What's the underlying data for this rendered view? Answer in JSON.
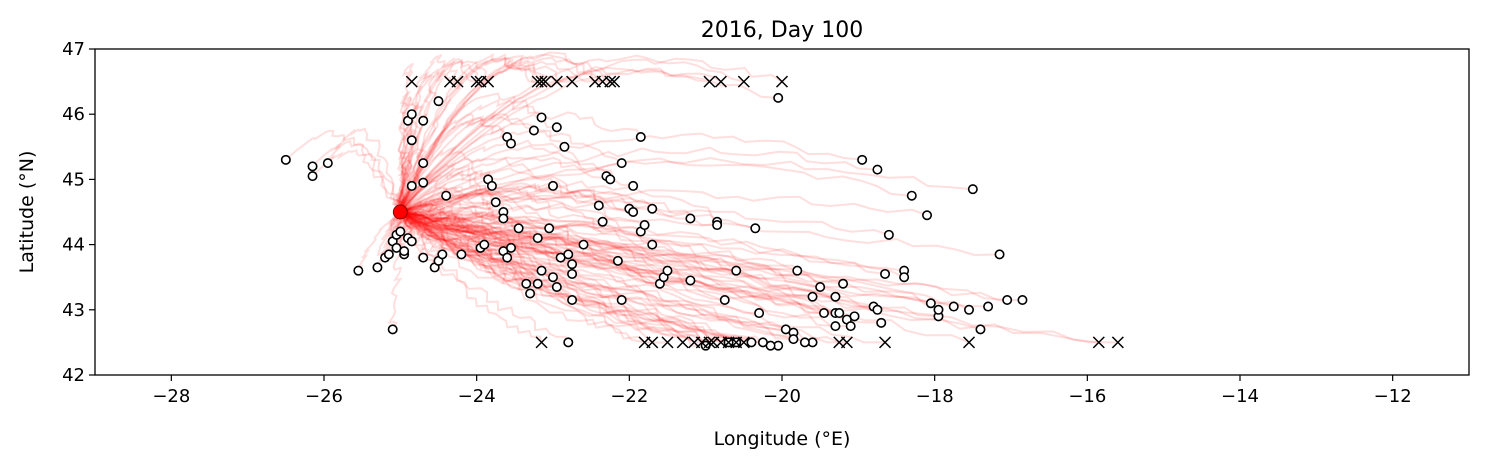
{
  "chart_data": {
    "type": "scatter",
    "title": "2016, Day 100",
    "xlabel": "Longitude (°E)",
    "ylabel": "Latitude (°N)",
    "xlim": [
      -29,
      -11
    ],
    "ylim": [
      42,
      47
    ],
    "xticks": [
      -28,
      -26,
      -24,
      -22,
      -20,
      -18,
      -16,
      -14,
      -12
    ],
    "yticks": [
      42,
      43,
      44,
      45,
      46,
      47
    ],
    "xtick_labels": [
      "−28",
      "−26",
      "−24",
      "−22",
      "−20",
      "−18",
      "−16",
      "−14",
      "−12"
    ],
    "ytick_labels": [
      "42",
      "43",
      "44",
      "45",
      "46",
      "47"
    ],
    "grid": false,
    "release_point": {
      "x": -25.0,
      "y": 44.5,
      "color": "#ff0000"
    },
    "track_color": "#ff0000",
    "series": [
      {
        "marker": "open-circle",
        "points": [
          [
            -26.5,
            45.3
          ],
          [
            -26.15,
            45.2
          ],
          [
            -26.15,
            45.05
          ],
          [
            -25.95,
            45.25
          ],
          [
            -25.55,
            43.6
          ],
          [
            -25.3,
            43.65
          ],
          [
            -25.2,
            43.8
          ],
          [
            -25.15,
            43.85
          ],
          [
            -25.1,
            44.05
          ],
          [
            -25.05,
            43.95
          ],
          [
            -25.05,
            44.15
          ],
          [
            -25.0,
            44.2
          ],
          [
            -24.95,
            43.85
          ],
          [
            -24.95,
            43.9
          ],
          [
            -25.1,
            42.7
          ],
          [
            -24.9,
            44.1
          ],
          [
            -24.85,
            44.05
          ],
          [
            -24.85,
            44.9
          ],
          [
            -24.85,
            45.6
          ],
          [
            -24.9,
            45.9
          ],
          [
            -24.85,
            46.0
          ],
          [
            -24.7,
            45.9
          ],
          [
            -24.7,
            45.25
          ],
          [
            -24.7,
            44.95
          ],
          [
            -24.7,
            43.8
          ],
          [
            -24.55,
            43.65
          ],
          [
            -24.5,
            43.75
          ],
          [
            -24.45,
            43.85
          ],
          [
            -24.4,
            44.75
          ],
          [
            -24.5,
            46.2
          ],
          [
            -24.2,
            43.85
          ],
          [
            -23.95,
            43.95
          ],
          [
            -23.9,
            44.0
          ],
          [
            -23.85,
            45.0
          ],
          [
            -23.8,
            44.9
          ],
          [
            -23.75,
            44.65
          ],
          [
            -23.65,
            44.5
          ],
          [
            -23.65,
            44.4
          ],
          [
            -23.65,
            43.9
          ],
          [
            -23.6,
            43.8
          ],
          [
            -23.55,
            43.95
          ],
          [
            -23.45,
            44.25
          ],
          [
            -23.6,
            45.65
          ],
          [
            -23.55,
            45.55
          ],
          [
            -23.35,
            43.4
          ],
          [
            -23.3,
            43.25
          ],
          [
            -23.15,
            43.6
          ],
          [
            -23.2,
            43.4
          ],
          [
            -23.2,
            44.1
          ],
          [
            -23.05,
            44.25
          ],
          [
            -23.0,
            43.5
          ],
          [
            -22.95,
            43.35
          ],
          [
            -23.0,
            44.9
          ],
          [
            -22.9,
            43.8
          ],
          [
            -22.8,
            43.85
          ],
          [
            -22.75,
            43.7
          ],
          [
            -22.75,
            43.55
          ],
          [
            -22.75,
            43.15
          ],
          [
            -22.8,
            42.5
          ],
          [
            -23.25,
            45.75
          ],
          [
            -23.15,
            45.95
          ],
          [
            -22.95,
            45.8
          ],
          [
            -22.85,
            45.5
          ],
          [
            -22.6,
            44.0
          ],
          [
            -22.4,
            44.6
          ],
          [
            -22.35,
            44.35
          ],
          [
            -22.3,
            45.05
          ],
          [
            -22.25,
            45.0
          ],
          [
            -22.15,
            43.75
          ],
          [
            -22.1,
            43.15
          ],
          [
            -22.1,
            45.25
          ],
          [
            -22.0,
            44.55
          ],
          [
            -21.95,
            44.5
          ],
          [
            -21.95,
            44.9
          ],
          [
            -21.85,
            44.2
          ],
          [
            -21.8,
            44.3
          ],
          [
            -21.85,
            45.65
          ],
          [
            -21.7,
            44.55
          ],
          [
            -21.7,
            44.0
          ],
          [
            -21.6,
            43.4
          ],
          [
            -21.55,
            43.5
          ],
          [
            -21.5,
            43.6
          ],
          [
            -21.2,
            43.45
          ],
          [
            -21.2,
            44.4
          ],
          [
            -20.85,
            44.35
          ],
          [
            -20.85,
            44.3
          ],
          [
            -20.75,
            43.15
          ],
          [
            -20.6,
            43.6
          ],
          [
            -20.35,
            44.25
          ],
          [
            -20.3,
            42.95
          ],
          [
            -20.05,
            46.25
          ],
          [
            -19.95,
            42.7
          ],
          [
            -19.85,
            42.65
          ],
          [
            -19.8,
            43.6
          ],
          [
            -19.85,
            42.55
          ],
          [
            -19.6,
            43.2
          ],
          [
            -19.5,
            43.35
          ],
          [
            -19.45,
            42.95
          ],
          [
            -19.3,
            43.2
          ],
          [
            -19.3,
            42.95
          ],
          [
            -19.3,
            42.75
          ],
          [
            -19.25,
            42.95
          ],
          [
            -19.2,
            43.4
          ],
          [
            -19.15,
            42.85
          ],
          [
            -19.1,
            42.75
          ],
          [
            -19.05,
            42.9
          ],
          [
            -18.95,
            45.3
          ],
          [
            -18.8,
            43.05
          ],
          [
            -18.75,
            43.0
          ],
          [
            -18.75,
            45.15
          ],
          [
            -18.7,
            42.8
          ],
          [
            -18.65,
            43.55
          ],
          [
            -18.6,
            44.15
          ],
          [
            -18.4,
            43.6
          ],
          [
            -18.4,
            43.5
          ],
          [
            -18.3,
            44.75
          ],
          [
            -18.1,
            44.45
          ],
          [
            -18.05,
            43.1
          ],
          [
            -17.95,
            42.9
          ],
          [
            -17.95,
            43.0
          ],
          [
            -17.75,
            43.05
          ],
          [
            -17.55,
            43.0
          ],
          [
            -17.5,
            44.85
          ],
          [
            -17.4,
            42.7
          ],
          [
            -17.3,
            43.05
          ],
          [
            -17.15,
            43.85
          ],
          [
            -17.05,
            43.15
          ],
          [
            -16.85,
            43.15
          ],
          [
            -20.05,
            42.45
          ],
          [
            -20.15,
            42.45
          ],
          [
            -20.4,
            42.5
          ],
          [
            -20.6,
            42.5
          ],
          [
            -20.7,
            42.5
          ],
          [
            -19.6,
            42.5
          ],
          [
            -19.7,
            42.5
          ],
          [
            -20.25,
            42.5
          ],
          [
            -21.0,
            42.45
          ]
        ]
      },
      {
        "marker": "x",
        "points": [
          [
            -24.85,
            46.5
          ],
          [
            -24.35,
            46.5
          ],
          [
            -24.25,
            46.5
          ],
          [
            -24.0,
            46.5
          ],
          [
            -23.95,
            46.5
          ],
          [
            -23.85,
            46.5
          ],
          [
            -23.2,
            46.5
          ],
          [
            -23.15,
            46.5
          ],
          [
            -23.1,
            46.5
          ],
          [
            -22.95,
            46.5
          ],
          [
            -22.75,
            46.5
          ],
          [
            -22.45,
            46.5
          ],
          [
            -22.35,
            46.5
          ],
          [
            -22.25,
            46.5
          ],
          [
            -22.2,
            46.5
          ],
          [
            -20.95,
            46.5
          ],
          [
            -20.8,
            46.5
          ],
          [
            -20.5,
            46.5
          ],
          [
            -20.0,
            46.5
          ],
          [
            -23.15,
            42.5
          ],
          [
            -21.8,
            42.5
          ],
          [
            -21.7,
            42.5
          ],
          [
            -21.5,
            42.5
          ],
          [
            -21.3,
            42.5
          ],
          [
            -21.15,
            42.5
          ],
          [
            -21.05,
            42.5
          ],
          [
            -20.95,
            42.5
          ],
          [
            -20.9,
            42.5
          ],
          [
            -20.8,
            42.5
          ],
          [
            -20.7,
            42.5
          ],
          [
            -20.6,
            42.5
          ],
          [
            -20.5,
            42.5
          ],
          [
            -19.25,
            42.5
          ],
          [
            -19.15,
            42.5
          ],
          [
            -18.65,
            42.5
          ],
          [
            -17.55,
            42.5
          ],
          [
            -15.85,
            42.5
          ],
          [
            -15.6,
            42.5
          ]
        ]
      }
    ]
  }
}
